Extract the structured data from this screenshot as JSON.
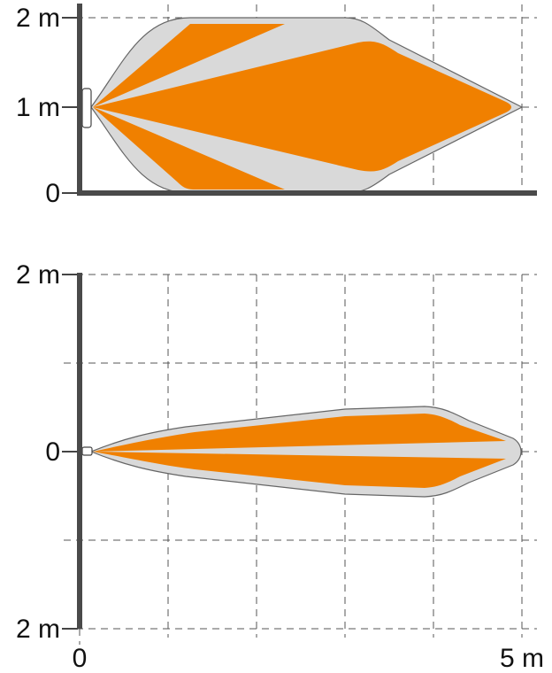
{
  "top_view": {
    "y_labels": [
      "2 m",
      "1 m",
      "0"
    ]
  },
  "side_view": {
    "y_labels": [
      "2 m",
      "0",
      "2 m"
    ],
    "x_labels": [
      "0",
      "5 m"
    ]
  }
}
